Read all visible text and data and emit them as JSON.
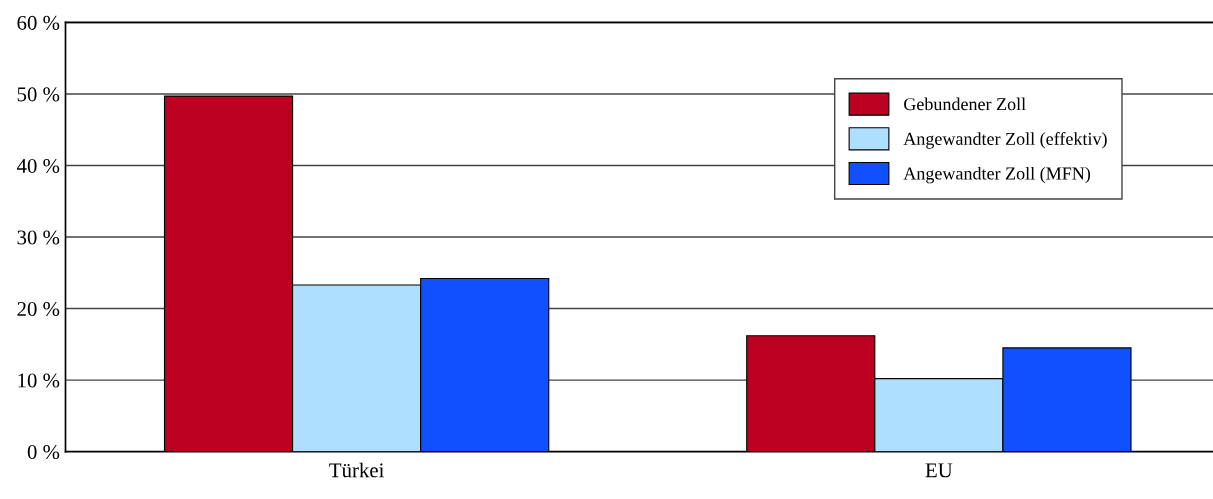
{
  "chart_data": {
    "type": "bar",
    "categories": [
      "Türkei",
      "EU"
    ],
    "series": [
      {
        "name": "Gebundener Zoll",
        "color": "#bb0022",
        "values": [
          49.7,
          16.2
        ]
      },
      {
        "name": "Angewandter Zoll (effektiv)",
        "color": "#aedfff",
        "values": [
          23.3,
          10.2
        ]
      },
      {
        "name": "Angewandter Zoll (MFN)",
        "color": "#1150ff",
        "values": [
          24.2,
          14.5
        ]
      }
    ],
    "ylim": [
      0,
      60
    ],
    "yticks": [
      {
        "value": 0,
        "label": "0 %"
      },
      {
        "value": 10,
        "label": "10 %"
      },
      {
        "value": 20,
        "label": "20 %"
      },
      {
        "value": 30,
        "label": "30 %"
      },
      {
        "value": 40,
        "label": "40 %"
      },
      {
        "value": 50,
        "label": "50 %"
      },
      {
        "value": 60,
        "label": "60 %"
      }
    ],
    "grid": "y",
    "legend": "top right"
  }
}
